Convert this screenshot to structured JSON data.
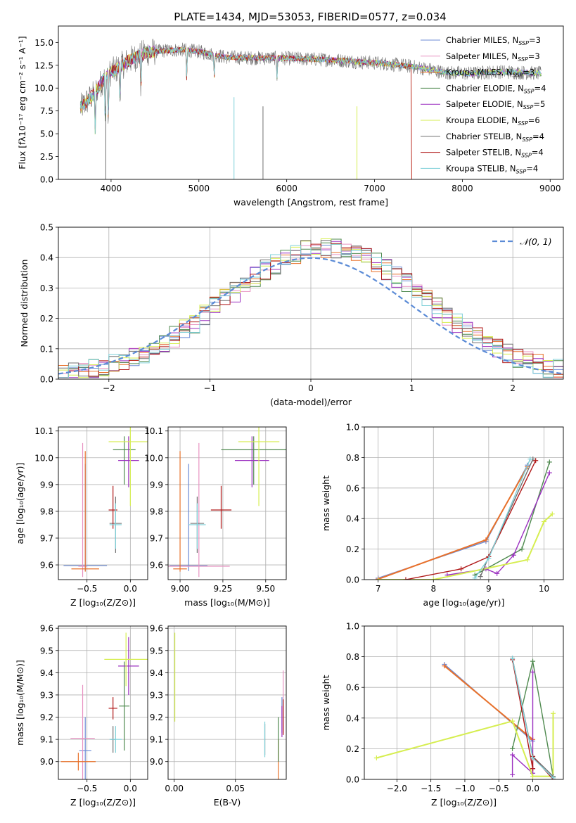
{
  "figure_title": "PLATE=1434, MJD=53053, FIBERID=0577, z=0.034",
  "legend_names": [
    [
      "Chabrier MILES, N",
      "SSP",
      "=3"
    ],
    [
      "Salpeter MILES, N",
      "SSP",
      "=3"
    ],
    [
      "Kroupa MILES, N",
      "SSP",
      "=3"
    ],
    [
      "Chabrier ELODIE, N",
      "SSP",
      "=4"
    ],
    [
      "Salpeter ELODIE, N",
      "SSP",
      "=5"
    ],
    [
      "Kroupa ELODIE, N",
      "SSP",
      "=6"
    ],
    [
      "Chabrier STELIB, N",
      "SSP",
      "=4"
    ],
    [
      "Salpeter STELIB, N",
      "SSP",
      "=4"
    ],
    [
      "Kroupa STELIB, N",
      "SSP",
      "=4"
    ]
  ],
  "series_colors": [
    "#6b8bd6",
    "#e893c2",
    "#e8712a",
    "#4f8a4f",
    "#9b30c0",
    "#d6ee50",
    "#707070",
    "#b01818",
    "#7fd0d8"
  ],
  "chart_data": [
    {
      "id": "spectrum",
      "type": "line",
      "xlabel": "wavelength [Angstrom, rest frame]",
      "ylabel": "Flux [fλ10⁻¹⁷ erg cm⁻² s⁻¹ A⁻¹]",
      "xlim": [
        3400,
        9150
      ],
      "ylim": [
        0,
        16.8
      ],
      "xticks": [
        4000,
        5000,
        6000,
        7000,
        8000,
        9000
      ],
      "yticks": [
        0.0,
        2.5,
        5.0,
        7.5,
        10.0,
        12.5,
        15.0
      ],
      "grid": false,
      "legend_position": "upper right",
      "continuum": {
        "x": [
          3650,
          3800,
          3950,
          4050,
          4200,
          4400,
          4600,
          4800,
          5000,
          5300,
          5600,
          5900,
          6200,
          6500,
          6800,
          7100,
          7400,
          7600,
          7800,
          8100,
          8400,
          8700,
          8900
        ],
        "y": [
          7.8,
          9.3,
          11.5,
          12.0,
          13.0,
          13.9,
          14.1,
          14.2,
          14.0,
          13.4,
          13.3,
          13.3,
          13.2,
          13.1,
          12.9,
          12.7,
          12.4,
          12.1,
          11.7,
          11.6,
          11.8,
          11.7,
          11.6
        ]
      },
      "model_end_wavelength": {
        "Salpeter STELIB": 7420,
        "Kroupa MILES": 7420
      }
    },
    {
      "id": "residuals",
      "type": "histogram",
      "xlabel": "(data-model)/error",
      "ylabel": "Normed distribution",
      "xlim": [
        -2.5,
        2.5
      ],
      "ylim": [
        0,
        0.5
      ],
      "xticks": [
        -2,
        -1,
        0,
        1,
        2
      ],
      "yticks": [
        0.0,
        0.1,
        0.2,
        0.3,
        0.4,
        0.5
      ],
      "grid": true,
      "legend_position": "upper right",
      "reference_curve": {
        "name": "𝒩(0, 1)",
        "mean": 0,
        "sigma": 1,
        "color": "#5b8bd6",
        "style": "dashed"
      },
      "bin_width": 0.1,
      "bin_start": -2.5
    },
    {
      "id": "age_vs_Z",
      "type": "errorbar",
      "xlabel": "Z [log₁₀(Z/Z⊙)]",
      "ylabel": "age  [log₁₀(age/yr)]",
      "xlim": [
        -0.83,
        0.2
      ],
      "ylim": [
        9.545,
        10.115
      ],
      "xticks": [
        -0.5,
        0.0
      ],
      "yticks": [
        9.6,
        9.7,
        9.8,
        9.9,
        10.0,
        10.1
      ],
      "grid": true,
      "points": [
        {
          "x": -0.52,
          "xerr": 0.25,
          "y": 9.597,
          "yerr_lo": 0.02,
          "yerr_hi": 0.38
        },
        {
          "x": -0.55,
          "xerr": 0.05,
          "y": 9.595,
          "yerr_lo": 0.04,
          "yerr_hi": 0.46
        },
        {
          "x": -0.52,
          "xerr": 0.16,
          "y": 9.585,
          "yerr_lo": 0.01,
          "yerr_hi": 0.44
        },
        {
          "x": -0.07,
          "xerr": 0.13,
          "y": 10.03,
          "yerr_lo": 0.13,
          "yerr_hi": 0.05
        },
        {
          "x": -0.02,
          "xerr": 0.12,
          "y": 9.99,
          "yerr_lo": 0.1,
          "yerr_hi": 0.09
        },
        {
          "x": 0.0,
          "xerr": 0.25,
          "y": 10.06,
          "yerr_lo": 0.24,
          "yerr_hi": 0.06
        },
        {
          "x": -0.17,
          "xerr": 0.07,
          "y": 9.755,
          "yerr_lo": 0.11,
          "yerr_hi": 0.1
        },
        {
          "x": -0.2,
          "xerr": 0.05,
          "y": 9.805,
          "yerr_lo": 0.07,
          "yerr_hi": 0.09
        },
        {
          "x": -0.17,
          "xerr": 0.07,
          "y": 9.75,
          "yerr_lo": 0.09,
          "yerr_hi": 0.08
        }
      ]
    },
    {
      "id": "age_vs_mass",
      "type": "errorbar",
      "xlabel": "mass [log₁₀(M/M⊙)]",
      "ylabel": "",
      "xlim": [
        8.93,
        9.62
      ],
      "ylim": [
        9.545,
        10.115
      ],
      "xticks": [
        9.0,
        9.25,
        9.5
      ],
      "yticks": [
        9.6,
        9.7,
        9.8,
        9.9,
        10.0,
        10.1
      ],
      "grid": true,
      "points": [
        {
          "x": 9.05,
          "xerr": 0.11,
          "y": 9.597,
          "yerr_lo": 0.02,
          "yerr_hi": 0.38
        },
        {
          "x": 9.11,
          "xerr": 0.18,
          "y": 9.595,
          "yerr_lo": 0.04,
          "yerr_hi": 0.46
        },
        {
          "x": 9.0,
          "xerr": 0.04,
          "y": 9.585,
          "yerr_lo": 0.01,
          "yerr_hi": 0.44
        },
        {
          "x": 9.43,
          "xerr": 0.19,
          "y": 10.03,
          "yerr_lo": 0.13,
          "yerr_hi": 0.05
        },
        {
          "x": 9.42,
          "xerr": 0.1,
          "y": 9.99,
          "yerr_lo": 0.1,
          "yerr_hi": 0.09
        },
        {
          "x": 9.46,
          "xerr": 0.12,
          "y": 10.06,
          "yerr_lo": 0.24,
          "yerr_hi": 0.06
        },
        {
          "x": 9.1,
          "xerr": 0.04,
          "y": 9.755,
          "yerr_lo": 0.11,
          "yerr_hi": 0.1
        },
        {
          "x": 9.24,
          "xerr": 0.06,
          "y": 9.805,
          "yerr_lo": 0.07,
          "yerr_hi": 0.09
        },
        {
          "x": 9.1,
          "xerr": 0.05,
          "y": 9.75,
          "yerr_lo": 0.09,
          "yerr_hi": 0.08
        }
      ]
    },
    {
      "id": "massweight_vs_age",
      "type": "line",
      "xlabel": "age  [log₁₀(age/yr)]",
      "ylabel": "mass weight",
      "xlim": [
        6.75,
        10.35
      ],
      "ylim": [
        0,
        1.0
      ],
      "xticks": [
        7,
        8,
        9,
        10
      ],
      "yticks": [
        0.0,
        0.2,
        0.4,
        0.6,
        0.8,
        1.0
      ],
      "grid": true,
      "series": [
        {
          "x": [
            7.0,
            8.95,
            9.7
          ],
          "y": [
            0.01,
            0.25,
            0.75
          ]
        },
        {
          "x": [
            7.0,
            8.95,
            9.7
          ],
          "y": [
            0.005,
            0.26,
            0.74
          ]
        },
        {
          "x": [
            7.0,
            8.95,
            9.7
          ],
          "y": [
            0.003,
            0.26,
            0.74
          ]
        },
        {
          "x": [
            8.75,
            9.6,
            10.1
          ],
          "y": [
            0.03,
            0.2,
            0.77
          ]
        },
        {
          "x": [
            8.25,
            8.95,
            9.15,
            9.45,
            10.1
          ],
          "y": [
            0.03,
            0.07,
            0.04,
            0.16,
            0.7
          ]
        },
        {
          "x": [
            7.0,
            8.0,
            9.7,
            10.0,
            10.15
          ],
          "y": [
            0.0,
            0.0,
            0.13,
            0.38,
            0.43
          ]
        },
        {
          "x": [
            8.85,
            9.0,
            9.8
          ],
          "y": [
            0.02,
            0.15,
            0.79
          ]
        },
        {
          "x": [
            7.5,
            8.5,
            9.0,
            9.85
          ],
          "y": [
            0.0,
            0.07,
            0.15,
            0.78
          ]
        },
        {
          "x": [
            8.75,
            9.0,
            9.75
          ],
          "y": [
            0.01,
            0.14,
            0.79
          ]
        }
      ]
    },
    {
      "id": "mass_vs_Z",
      "type": "errorbar",
      "xlabel": "Z [log₁₀(Z/Z⊙)]",
      "ylabel": "mass [log₁₀(M/M⊙)]",
      "xlim": [
        -0.83,
        0.2
      ],
      "ylim": [
        8.92,
        9.61
      ],
      "xticks": [
        -0.5,
        0.0
      ],
      "yticks": [
        9.0,
        9.1,
        9.2,
        9.3,
        9.4,
        9.5,
        9.6
      ],
      "grid": true,
      "points": [
        {
          "x": -0.52,
          "xerr": 0.07,
          "y": 9.05,
          "yerr": 0.15
        },
        {
          "x": -0.55,
          "xerr": 0.14,
          "y": 9.105,
          "yerr": 0.24
        },
        {
          "x": -0.6,
          "xerr": 0.2,
          "y": 9.0,
          "yerr": 0.04
        },
        {
          "x": -0.07,
          "xerr": 0.06,
          "y": 9.25,
          "yerr": 0.2
        },
        {
          "x": -0.02,
          "xerr": 0.12,
          "y": 9.43,
          "yerr": 0.13
        },
        {
          "x": -0.05,
          "xerr": 0.25,
          "y": 9.46,
          "yerr": 0.12
        },
        {
          "x": -0.2,
          "xerr": 0.03,
          "y": 9.1,
          "yerr": 0.06
        },
        {
          "x": -0.2,
          "xerr": 0.05,
          "y": 9.24,
          "yerr": 0.05
        },
        {
          "x": -0.17,
          "xerr": 0.07,
          "y": 9.1,
          "yerr": 0.06
        }
      ]
    },
    {
      "id": "mass_vs_EBV",
      "type": "errorbar",
      "xlabel": "E(B-V)",
      "ylabel": "",
      "xlim": [
        -0.005,
        0.0915
      ],
      "ylim": [
        8.92,
        9.61
      ],
      "xticks": [
        0.0,
        0.05
      ],
      "yticks": [
        9.0,
        9.1,
        9.2,
        9.3,
        9.4,
        9.5,
        9.6
      ],
      "grid": true,
      "points": [
        {
          "x": 0.088,
          "y": 9.21,
          "yerr": 0.08
        },
        {
          "x": 0.089,
          "y": 9.27,
          "yerr": 0.14
        },
        {
          "x": 0.085,
          "y": 9.0,
          "yerr": 0.1
        },
        {
          "x": 0.085,
          "y": 9.1,
          "yerr": 0.1
        },
        {
          "x": 0.088,
          "y": 9.18,
          "yerr": 0.07
        },
        {
          "x": 0.0005,
          "y": 9.38,
          "yerr": 0.2
        },
        {
          "x": 0.074,
          "y": 9.1,
          "yerr": 0.07
        },
        {
          "x": 0.089,
          "y": 9.2,
          "yerr": 0.08
        },
        {
          "x": 0.074,
          "y": 9.1,
          "yerr": 0.08
        }
      ]
    },
    {
      "id": "massweight_vs_Z",
      "type": "line",
      "xlabel": "Z [log₁₀(Z/Z⊙)]",
      "ylabel": "mass weight",
      "xlim": [
        -2.48,
        0.45
      ],
      "ylim": [
        0,
        1.0
      ],
      "xticks": [
        -2.0,
        -1.5,
        -1.0,
        -0.5,
        0.0
      ],
      "yticks": [
        0.0,
        0.2,
        0.4,
        0.6,
        0.8,
        1.0
      ],
      "grid": true,
      "series": [
        {
          "x": [
            -1.3,
            0.0
          ],
          "y": [
            0.75,
            0.25
          ]
        },
        {
          "x": [
            -1.3,
            0.0
          ],
          "y": [
            0.74,
            0.26
          ]
        },
        {
          "x": [
            -1.3,
            0.0
          ],
          "y": [
            0.74,
            0.26
          ]
        },
        {
          "x": [
            -0.3,
            0.0,
            0.3
          ],
          "y": [
            0.2,
            0.77,
            0.02
          ]
        },
        {
          "x": [
            -0.3,
            -0.3,
            0.0,
            0.0,
            0.0
          ],
          "y": [
            0.03,
            0.16,
            0.04,
            0.07,
            0.7
          ]
        },
        {
          "x": [
            -2.3,
            -0.3,
            0.0,
            0.3,
            0.3
          ],
          "y": [
            0.14,
            0.38,
            0.02,
            0.02,
            0.43
          ]
        },
        {
          "x": [
            -0.3,
            0.0,
            0.3
          ],
          "y": [
            0.79,
            0.15,
            0.02
          ]
        },
        {
          "x": [
            -0.3,
            0.0,
            0.0,
            0.3
          ],
          "y": [
            0.78,
            0.07,
            0.15,
            0.0
          ]
        },
        {
          "x": [
            -0.3,
            0.0,
            0.3
          ],
          "y": [
            0.79,
            0.14,
            0.01
          ]
        }
      ]
    }
  ]
}
